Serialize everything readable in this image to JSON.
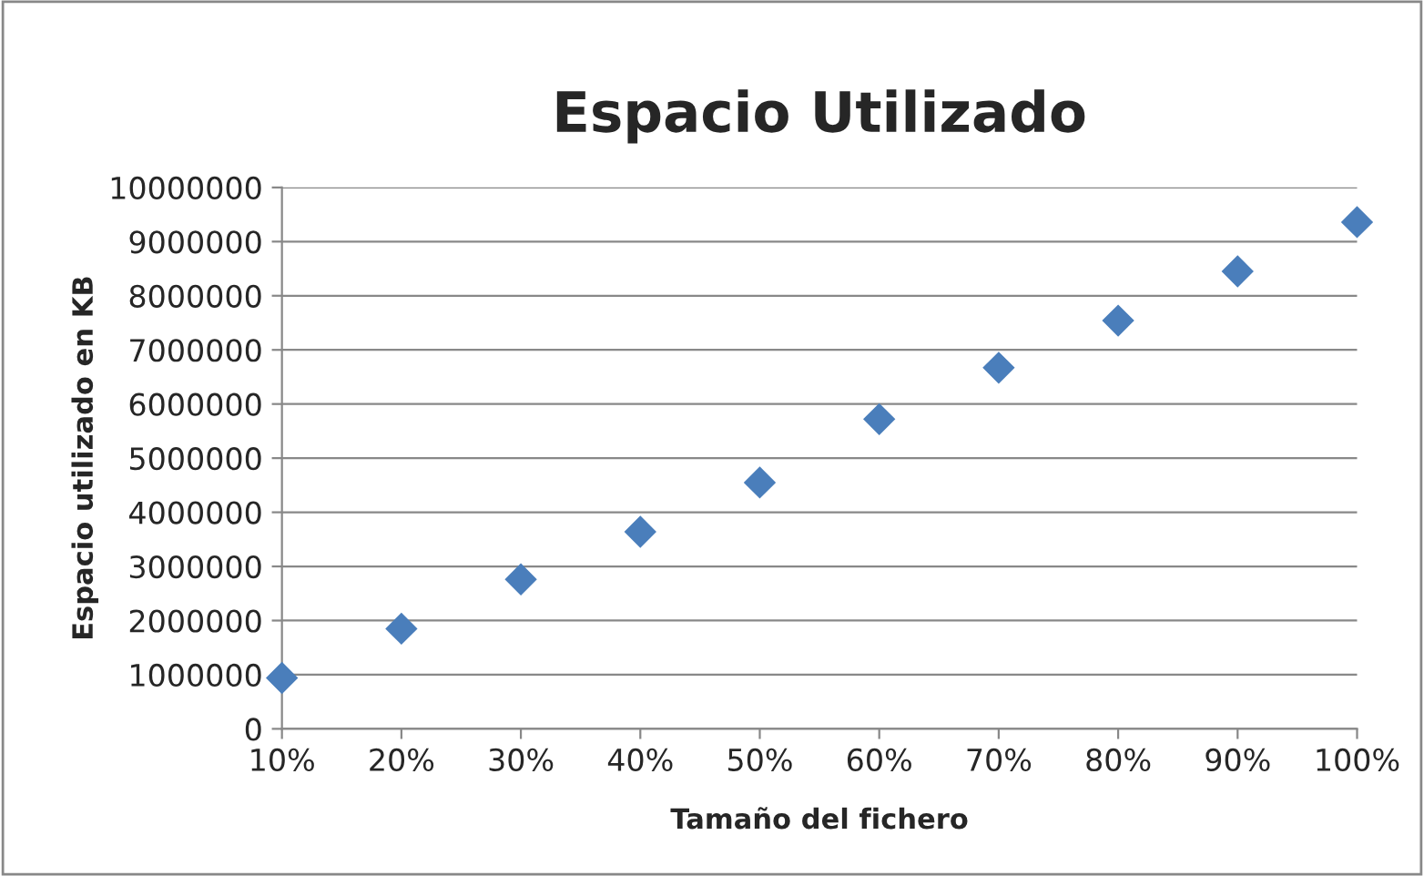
{
  "chart_data": {
    "type": "scatter",
    "title": "Espacio Utilizado",
    "xlabel": "Tamaño del fichero",
    "ylabel": "Espacio utilizado en KB",
    "categories": [
      "10%",
      "20%",
      "30%",
      "40%",
      "50%",
      "60%",
      "70%",
      "80%",
      "90%",
      "100%"
    ],
    "series": [
      {
        "color": "#4a7ebb",
        "values": [
          940000,
          1850000,
          2760000,
          3640000,
          4550000,
          5720000,
          6670000,
          7540000,
          8450000,
          9360000
        ]
      }
    ],
    "ylim": [
      0,
      10000000
    ],
    "yticks": [
      0,
      1000000,
      2000000,
      3000000,
      4000000,
      5000000,
      6000000,
      7000000,
      8000000,
      9000000,
      10000000
    ],
    "grid": "y",
    "marker": "diamond",
    "legend": false
  }
}
